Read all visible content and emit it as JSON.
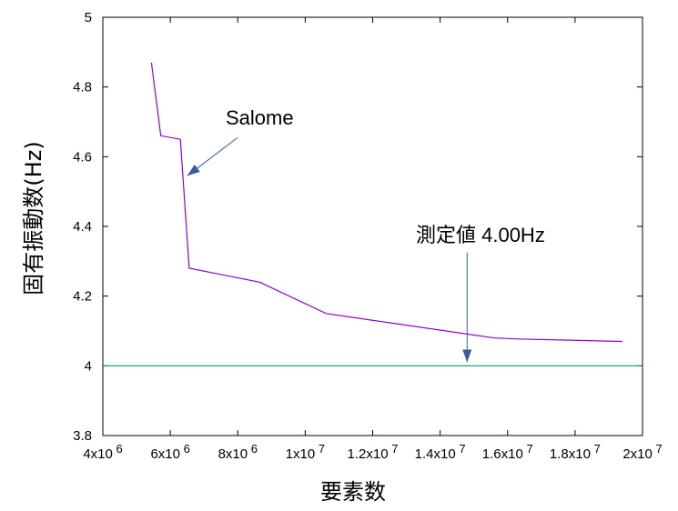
{
  "chart_data": {
    "type": "line",
    "title": "",
    "xlabel": "要素数",
    "ylabel": "固有振動数(Hz)",
    "xlim": [
      4000000,
      20000000
    ],
    "ylim": [
      3.8,
      5.0
    ],
    "grid": false,
    "x_ticks": [
      {
        "value": 4000000,
        "mant": "4x10",
        "exp": "6"
      },
      {
        "value": 6000000,
        "mant": "6x10",
        "exp": "6"
      },
      {
        "value": 8000000,
        "mant": "8x10",
        "exp": "6"
      },
      {
        "value": 10000000,
        "mant": "1x10",
        "exp": "7"
      },
      {
        "value": 12000000,
        "mant": "1.2x10",
        "exp": "7"
      },
      {
        "value": 14000000,
        "mant": "1.4x10",
        "exp": "7"
      },
      {
        "value": 16000000,
        "mant": "1.6x10",
        "exp": "7"
      },
      {
        "value": 18000000,
        "mant": "1.8x10",
        "exp": "7"
      },
      {
        "value": 20000000,
        "mant": "2x10",
        "exp": "7"
      }
    ],
    "y_ticks": [
      {
        "value": 3.8,
        "label": "3.8"
      },
      {
        "value": 4.0,
        "label": "4"
      },
      {
        "value": 4.2,
        "label": "4.2"
      },
      {
        "value": 4.4,
        "label": "4.4"
      },
      {
        "value": 4.6,
        "label": "4.6"
      },
      {
        "value": 4.8,
        "label": "4.8"
      },
      {
        "value": 5.0,
        "label": "5"
      }
    ],
    "series": [
      {
        "color": "#9400d3",
        "x": [
          5440000,
          5720000,
          6300000,
          6560000,
          8650000,
          10620000,
          15600000,
          16300000,
          19400000
        ],
        "y": [
          4.87,
          4.66,
          4.65,
          4.28,
          4.24,
          4.15,
          4.08,
          4.077,
          4.07
        ]
      },
      {
        "color": "#009e73",
        "x": [
          4000000,
          20000000
        ],
        "y": [
          4.0,
          4.0
        ]
      }
    ],
    "annotations": [
      {
        "text": "Salome",
        "arrow_from": [
          8000000,
          4.655
        ],
        "arrow_to": [
          6500000,
          4.545
        ]
      },
      {
        "text": "測定値 4.00Hz",
        "arrow_from": [
          14800000,
          4.325
        ],
        "arrow_to": [
          14800000,
          4.01
        ]
      }
    ],
    "arrow_color": "#3060a0"
  }
}
